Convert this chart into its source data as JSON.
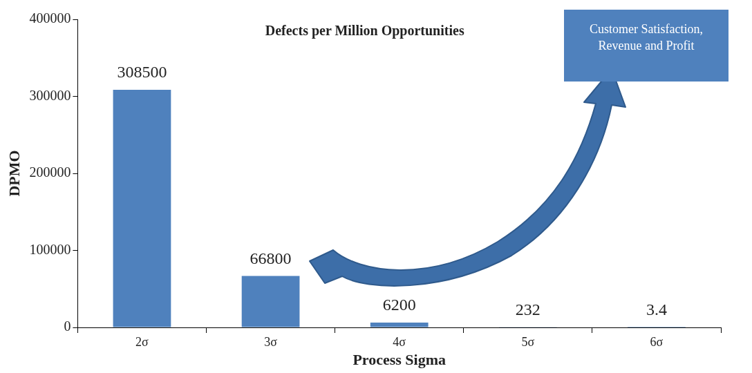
{
  "chart_data": {
    "type": "bar",
    "title": "Defects per Million Opportunities",
    "xlabel": "Process Sigma",
    "ylabel": "DPMO",
    "categories": [
      "2σ",
      "3σ",
      "4σ",
      "5σ",
      "6σ"
    ],
    "values": [
      308500,
      66800,
      6200,
      232,
      3.4
    ],
    "color": "#4f81bd",
    "ylim": [
      0,
      400000
    ],
    "yticks": [
      0,
      100000,
      200000,
      300000,
      400000
    ],
    "grid": false,
    "legend": false,
    "data_labels": true,
    "annotations": [
      "Customer Satisfaction, Revenue and Profit"
    ]
  }
}
